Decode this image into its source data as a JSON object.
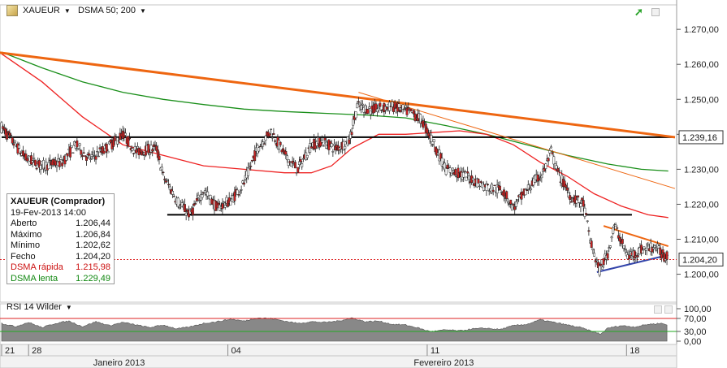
{
  "toolbar": {
    "symbol": "XAUEUR",
    "indicator": "DSMA 50; 200"
  },
  "icons": [
    "gold-bar-icon",
    "dropdown-arrow-icon",
    "trend-arrow-icon",
    "maximize-icon",
    "settings-icon",
    "close-icon"
  ],
  "colors": {
    "candle_up": "#ffffff",
    "candle_down": "#cc2222",
    "candle_border": "#222222",
    "dsma_fast": "#ee2222",
    "dsma_slow": "#1a8f1a",
    "trendline": "#ee6611",
    "support_resistance": "#000000",
    "channel_line": "#3344aa",
    "rsi_fill": "#888888",
    "rsi_upper": "#dd2222",
    "rsi_lower": "#22aa22",
    "price_marker_line": "#dd2222"
  },
  "info_box": {
    "title": "XAUEUR (Comprador)",
    "date": "19-Fev-2013 14:00",
    "rows": [
      {
        "label": "Aberto",
        "value": "1.206,44"
      },
      {
        "label": "Máximo",
        "value": "1.206,84"
      },
      {
        "label": "Mínimo",
        "value": "1.202,62"
      },
      {
        "label": "Fecho",
        "value": "1.204,20"
      },
      {
        "label": "DSMA rápida",
        "value": "1.215,98"
      },
      {
        "label": "DSMA lenta",
        "value": "1.229,49"
      }
    ]
  },
  "rsi": {
    "label": "RSI 14 Wilder",
    "upper_label": "70,00",
    "lower_label": "30,00"
  },
  "chart_data": {
    "type": "candlestick",
    "y_axis": {
      "ticks": [
        1200,
        1210,
        1220,
        1230,
        1240,
        1250,
        1260,
        1270
      ],
      "tick_labels": [
        "1.200,00",
        "1.210,00",
        "1.220,00",
        "1.230,00",
        "1.240,00",
        "1.250,00",
        "1.260,00",
        "1.270,00"
      ],
      "ylim": [
        1192,
        1277
      ]
    },
    "rsi_axis": {
      "ticks": [
        0,
        30,
        70,
        100
      ],
      "tick_labels": [
        "0,00",
        "30,00",
        "70,00",
        "100,00"
      ],
      "ylim": [
        0,
        100
      ]
    },
    "x_axis": {
      "day_labels": [
        {
          "label": "21",
          "index": 0
        },
        {
          "label": "28",
          "index": 20
        },
        {
          "label": "04",
          "index": 168
        },
        {
          "label": "11",
          "index": 316
        },
        {
          "label": "18",
          "index": 464
        }
      ],
      "month_labels": [
        {
          "label": "Janeiro 2013",
          "index": 68
        },
        {
          "label": "Fevereiro 2013",
          "index": 306
        }
      ],
      "n_bars": 500
    },
    "price_labels": [
      {
        "label": "1.239,16",
        "value": 1239.16
      },
      {
        "label": "1.204,20",
        "value": 1204.2
      }
    ],
    "horizontal_lines": [
      {
        "value": 1239.16,
        "x_from": 0,
        "x_to": 500
      },
      {
        "value": 1217,
        "x_from": 123,
        "x_to": 468
      }
    ],
    "current_price": 1204.2,
    "trend_lines": [
      {
        "from": [
          -5,
          1263.5
        ],
        "to": [
          500,
          1239.16
        ],
        "width": 3
      },
      {
        "from": [
          265,
          1252
        ],
        "to": [
          500,
          1224.5
        ],
        "width": 1
      },
      {
        "from": [
          447,
          1213.8
        ],
        "to": [
          495,
          1208
        ],
        "width": 2
      }
    ],
    "channel_line": {
      "from": [
        442,
        1200.6
      ],
      "to": [
        495,
        1205.5
      ]
    },
    "ohlc_keypoints": [
      [
        0,
        1242
      ],
      [
        8,
        1238
      ],
      [
        18,
        1233
      ],
      [
        30,
        1231
      ],
      [
        45,
        1232
      ],
      [
        55,
        1237
      ],
      [
        65,
        1233
      ],
      [
        78,
        1236
      ],
      [
        90,
        1240
      ],
      [
        100,
        1235
      ],
      [
        115,
        1236
      ],
      [
        120,
        1228
      ],
      [
        132,
        1220
      ],
      [
        140,
        1217
      ],
      [
        150,
        1224
      ],
      [
        160,
        1219
      ],
      [
        170,
        1221
      ],
      [
        180,
        1226
      ],
      [
        190,
        1236
      ],
      [
        200,
        1241
      ],
      [
        212,
        1233
      ],
      [
        220,
        1230
      ],
      [
        230,
        1237
      ],
      [
        238,
        1238
      ],
      [
        248,
        1236
      ],
      [
        258,
        1238
      ],
      [
        264,
        1248
      ],
      [
        275,
        1247
      ],
      [
        290,
        1248
      ],
      [
        305,
        1246
      ],
      [
        312,
        1244
      ],
      [
        320,
        1238
      ],
      [
        330,
        1230
      ],
      [
        345,
        1228
      ],
      [
        360,
        1225
      ],
      [
        372,
        1224
      ],
      [
        380,
        1219
      ],
      [
        392,
        1225
      ],
      [
        402,
        1229
      ],
      [
        408,
        1235
      ],
      [
        413,
        1229
      ],
      [
        423,
        1222
      ],
      [
        432,
        1220
      ],
      [
        438,
        1208
      ],
      [
        444,
        1201
      ],
      [
        450,
        1206
      ],
      [
        455,
        1214
      ],
      [
        465,
        1205
      ],
      [
        475,
        1207
      ],
      [
        485,
        1208
      ],
      [
        494,
        1204.2
      ]
    ],
    "dsma_fast_points": [
      [
        0,
        1263
      ],
      [
        30,
        1255
      ],
      [
        60,
        1245
      ],
      [
        90,
        1237
      ],
      [
        120,
        1234
      ],
      [
        150,
        1231
      ],
      [
        180,
        1230
      ],
      [
        210,
        1229
      ],
      [
        230,
        1229
      ],
      [
        245,
        1231
      ],
      [
        260,
        1236
      ],
      [
        280,
        1240
      ],
      [
        300,
        1240
      ],
      [
        320,
        1240.5
      ],
      [
        340,
        1241
      ],
      [
        360,
        1240
      ],
      [
        380,
        1237
      ],
      [
        400,
        1232
      ],
      [
        420,
        1228
      ],
      [
        440,
        1223
      ],
      [
        460,
        1219.5
      ],
      [
        480,
        1217
      ],
      [
        495,
        1216.2
      ]
    ],
    "dsma_slow_points": [
      [
        0,
        1263.5
      ],
      [
        30,
        1259
      ],
      [
        60,
        1255
      ],
      [
        90,
        1252
      ],
      [
        120,
        1250
      ],
      [
        150,
        1248.5
      ],
      [
        180,
        1247.2
      ],
      [
        210,
        1246.5
      ],
      [
        240,
        1246
      ],
      [
        270,
        1245.5
      ],
      [
        300,
        1244.7
      ],
      [
        330,
        1242.5
      ],
      [
        360,
        1240
      ],
      [
        390,
        1237
      ],
      [
        420,
        1234
      ],
      [
        450,
        1231.5
      ],
      [
        475,
        1230
      ],
      [
        495,
        1229.5
      ]
    ],
    "rsi_keypoints": [
      [
        0,
        55
      ],
      [
        10,
        45
      ],
      [
        20,
        58
      ],
      [
        30,
        42
      ],
      [
        40,
        55
      ],
      [
        50,
        62
      ],
      [
        60,
        45
      ],
      [
        70,
        60
      ],
      [
        80,
        48
      ],
      [
        90,
        58
      ],
      [
        100,
        50
      ],
      [
        110,
        42
      ],
      [
        120,
        50
      ],
      [
        130,
        38
      ],
      [
        140,
        44
      ],
      [
        150,
        55
      ],
      [
        160,
        60
      ],
      [
        170,
        68
      ],
      [
        180,
        62
      ],
      [
        190,
        72
      ],
      [
        200,
        70
      ],
      [
        210,
        62
      ],
      [
        220,
        55
      ],
      [
        230,
        60
      ],
      [
        240,
        58
      ],
      [
        250,
        62
      ],
      [
        260,
        72
      ],
      [
        270,
        60
      ],
      [
        280,
        62
      ],
      [
        290,
        52
      ],
      [
        300,
        50
      ],
      [
        305,
        45
      ],
      [
        310,
        40
      ],
      [
        315,
        33
      ],
      [
        320,
        30
      ],
      [
        330,
        35
      ],
      [
        340,
        32
      ],
      [
        350,
        38
      ],
      [
        360,
        40
      ],
      [
        370,
        36
      ],
      [
        380,
        48
      ],
      [
        390,
        52
      ],
      [
        400,
        66
      ],
      [
        410,
        58
      ],
      [
        420,
        50
      ],
      [
        430,
        42
      ],
      [
        440,
        28
      ],
      [
        445,
        22
      ],
      [
        450,
        40
      ],
      [
        460,
        48
      ],
      [
        470,
        44
      ],
      [
        480,
        52
      ],
      [
        490,
        55
      ],
      [
        496,
        48
      ]
    ]
  }
}
